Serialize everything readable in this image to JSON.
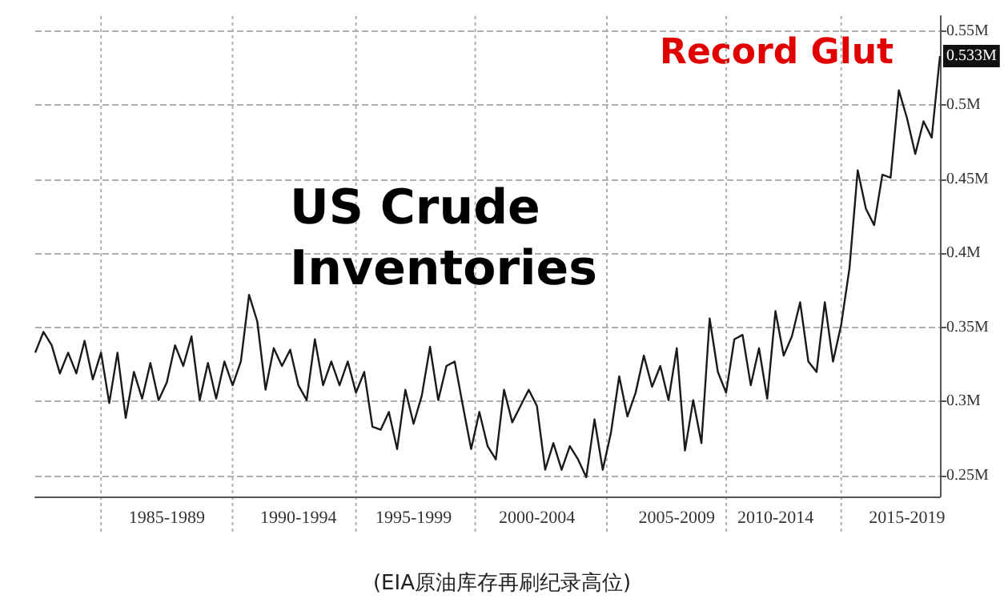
{
  "chart_data": {
    "type": "line",
    "title": "US Crude Inventories",
    "annotations": [
      "Record Glut",
      {
        "text": "0.533M",
        "y": 0.533
      },
      "(EIA原油库存再刷纪录高位)"
    ],
    "categories": [
      null,
      null,
      null,
      null,
      null,
      null,
      null,
      null,
      null,
      null,
      null,
      null,
      null,
      null,
      null,
      null,
      "1985-1989",
      null,
      null,
      null,
      null,
      null,
      null,
      null,
      null,
      null,
      null,
      null,
      null,
      null,
      null,
      null,
      "1990-1994",
      null,
      null,
      null,
      null,
      null,
      null,
      null,
      null,
      null,
      null,
      null,
      null,
      null,
      "1995-1999",
      null,
      null,
      null,
      null,
      null,
      null,
      null,
      null,
      null,
      null,
      null,
      null,
      null,
      null,
      "2000-2004",
      null,
      null,
      null,
      null,
      null,
      null,
      null,
      null,
      null,
      null,
      null,
      null,
      null,
      null,
      null,
      null,
      "2005-2009",
      null,
      null,
      null,
      null,
      null,
      null,
      null,
      null,
      null,
      null,
      null,
      "2010-2014",
      null,
      null,
      null,
      null,
      null,
      null,
      null,
      null,
      null,
      null,
      null,
      null,
      null,
      null,
      null,
      "2015-2019",
      null,
      null,
      null,
      null
    ],
    "series": [
      {
        "color": "#1a1a1a",
        "values": [
          0.333,
          0.347,
          0.338,
          0.319,
          0.333,
          0.319,
          0.341,
          0.315,
          0.333,
          0.299,
          0.333,
          0.289,
          0.32,
          0.302,
          0.326,
          0.301,
          0.313,
          0.338,
          0.324,
          0.344,
          0.301,
          0.326,
          0.302,
          0.327,
          0.311,
          0.327,
          0.372,
          0.354,
          0.308,
          0.336,
          0.324,
          0.335,
          0.311,
          0.301,
          0.342,
          0.311,
          0.327,
          0.311,
          0.327,
          0.306,
          0.32,
          0.283,
          0.281,
          0.293,
          0.268,
          0.308,
          0.285,
          0.304,
          0.337,
          0.301,
          0.324,
          0.327,
          0.297,
          0.268,
          0.293,
          0.27,
          0.261,
          0.308,
          0.286,
          0.297,
          0.308,
          0.297,
          0.254,
          0.272,
          0.254,
          0.27,
          0.261,
          0.249,
          0.288,
          0.254,
          0.279,
          0.317,
          0.29,
          0.306,
          0.331,
          0.31,
          0.324,
          0.301,
          0.336,
          0.267,
          0.301,
          0.272,
          0.356,
          0.32,
          0.306,
          0.342,
          0.345,
          0.311,
          0.336,
          0.302,
          0.361,
          0.331,
          0.344,
          0.367,
          0.327,
          0.32,
          0.367,
          0.327,
          0.352,
          0.39,
          0.456,
          0.43,
          0.419,
          0.453,
          0.451,
          0.51,
          0.491,
          0.467,
          0.489,
          0.478,
          0.533
        ]
      }
    ],
    "ylim": [
      0.236,
      0.56
    ],
    "yticks": [
      {
        "value": 0.25,
        "label": "0.25M"
      },
      {
        "value": 0.3,
        "label": "0.3M"
      },
      {
        "value": 0.35,
        "label": "0.35M"
      },
      {
        "value": 0.4,
        "label": "0.4M"
      },
      {
        "value": 0.45,
        "label": "0.45M"
      },
      {
        "value": 0.5,
        "label": "0.5M"
      },
      {
        "value": 0.55,
        "label": "0.55M"
      }
    ],
    "grid": true,
    "marker": "none",
    "line_style": "solid"
  }
}
